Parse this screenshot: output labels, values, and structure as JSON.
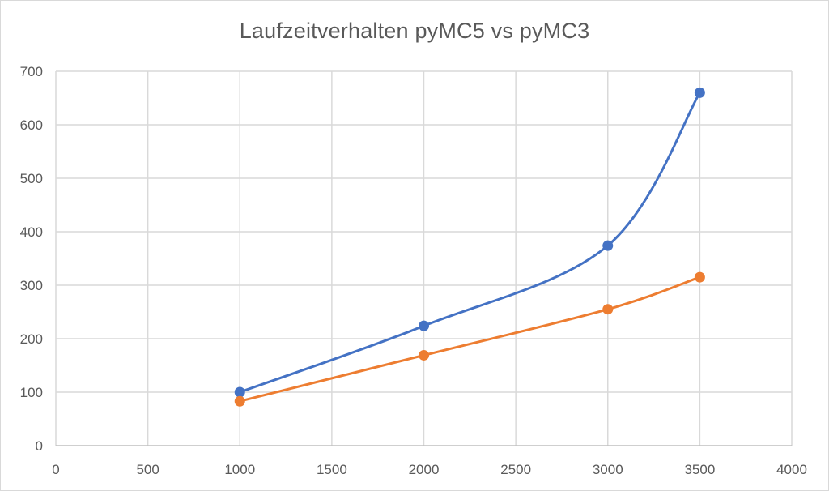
{
  "chart_data": {
    "type": "scatter",
    "title": "Laufzeitverhalten pyMC5 vs pyMC3",
    "xlabel": "",
    "ylabel": "",
    "xlim": [
      0,
      4000
    ],
    "ylim": [
      0,
      700
    ],
    "xticks": [
      "0",
      "500",
      "1000",
      "1500",
      "2000",
      "2500",
      "3000",
      "3500",
      "4000"
    ],
    "yticks": [
      "0",
      "100",
      "200",
      "300",
      "400",
      "500",
      "600",
      "700"
    ],
    "grid": true,
    "legend": "none",
    "smooth_lines": true,
    "series": [
      {
        "color": "#4472c4",
        "x": [
          1000,
          2000,
          3000,
          3500
        ],
        "y": [
          100,
          224,
          374,
          660
        ]
      },
      {
        "color": "#ed7d31",
        "x": [
          1000,
          2000,
          3000,
          3500
        ],
        "y": [
          83,
          169,
          255,
          315
        ]
      }
    ]
  }
}
